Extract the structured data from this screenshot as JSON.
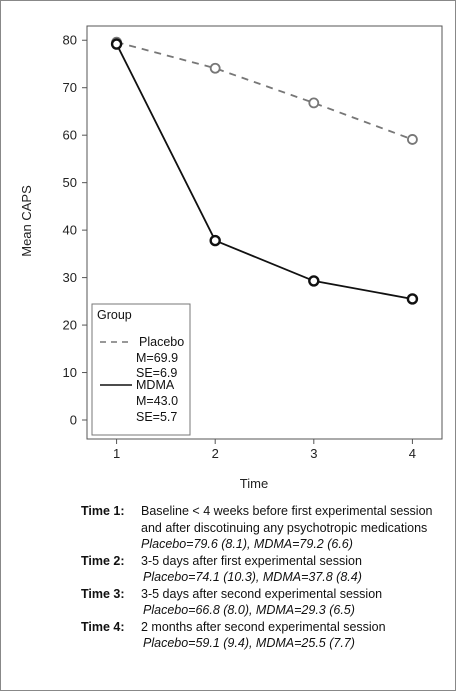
{
  "chart_data": {
    "type": "line",
    "xlabel": "Time",
    "ylabel": "Mean CAPS",
    "x": [
      1,
      2,
      3,
      4
    ],
    "xlim": [
      0.7,
      4.3
    ],
    "ylim": [
      -4,
      83
    ],
    "yticks": [
      0,
      10,
      20,
      30,
      40,
      50,
      60,
      70,
      80
    ],
    "grid": false,
    "legend": {
      "title": "Group",
      "position": "bottom-left",
      "entries": [
        {
          "label": "Placebo",
          "line1": "M=69.9",
          "line2": "SE=6.9"
        },
        {
          "label": "MDMA",
          "line1": "M=43.0",
          "line2": "SE=5.7"
        }
      ]
    },
    "series": [
      {
        "name": "Placebo",
        "values": [
          79.6,
          74.1,
          66.8,
          59.1
        ],
        "style": "dashed",
        "color": "#777777"
      },
      {
        "name": "MDMA",
        "values": [
          79.2,
          37.8,
          29.3,
          25.5
        ],
        "style": "solid",
        "color": "#111111"
      }
    ]
  },
  "notes": [
    {
      "label": "Time 1:",
      "desc": "Baseline < 4 weeks before first experimental session and after discotinuing any psychotropic medications",
      "values": "Placebo=79.6 (8.1), MDMA=79.2 (6.6)"
    },
    {
      "label": "Time 2:",
      "desc": "3-5 days after first experimental session",
      "values": "Placebo=74.1 (10.3), MDMA=37.8 (8.4)"
    },
    {
      "label": "Time 3:",
      "desc": "3-5 days after second experimental session",
      "values": "Placebo=66.8 (8.0), MDMA=29.3 (6.5)"
    },
    {
      "label": "Time 4:",
      "desc": "2 months after second experimental session",
      "values": "Placebo=59.1 (9.4), MDMA=25.5 (7.7)"
    }
  ]
}
